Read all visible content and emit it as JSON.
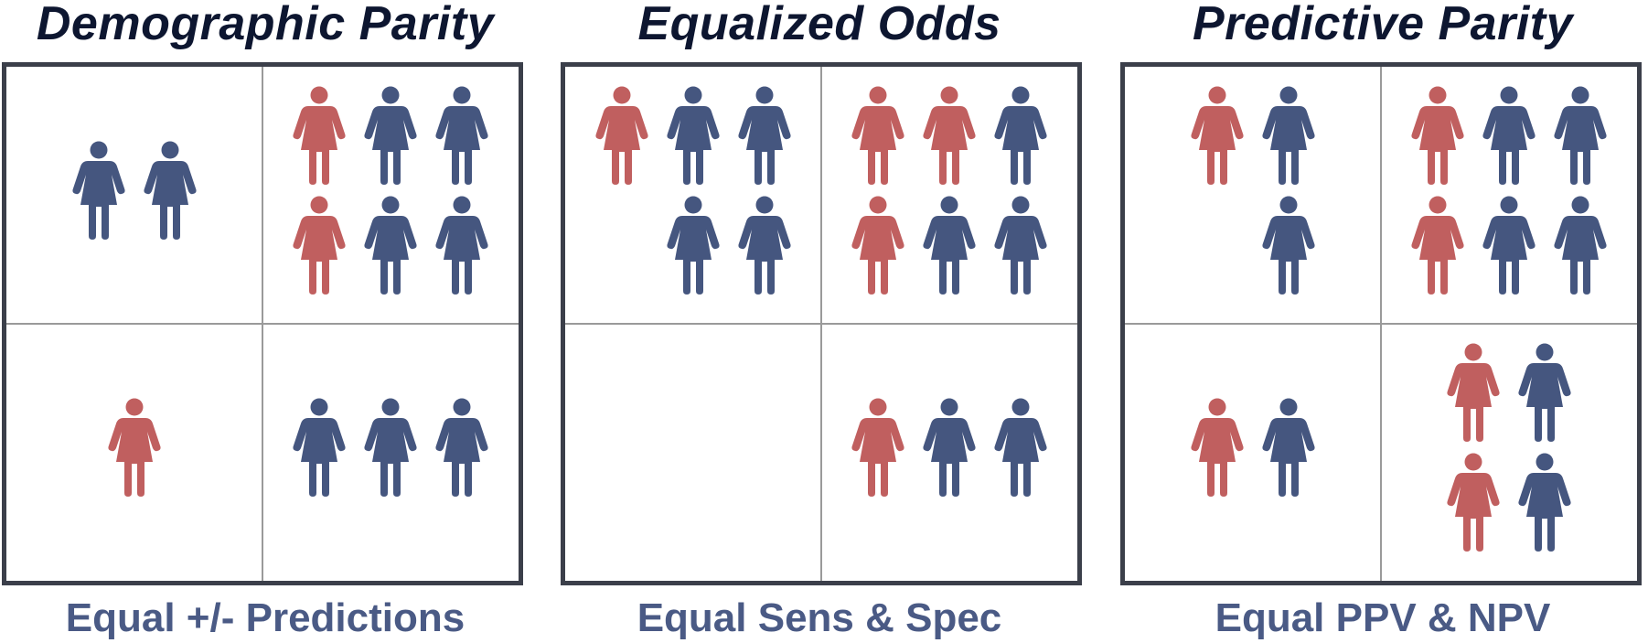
{
  "colors": {
    "red": "#c05f5f",
    "blue": "#45567f",
    "title": "#0d1630",
    "caption": "#4a5a85",
    "border": "#3b3f4a",
    "grid": "#9a9a9a"
  },
  "icon": "person-icon",
  "panels": [
    {
      "title": "Demographic Parity",
      "caption": "Equal +/- Predictions",
      "cells": {
        "tl": {
          "cols": 2,
          "people": [
            "blue",
            "blue"
          ]
        },
        "tr": {
          "cols": 3,
          "people": [
            "red",
            "blue",
            "blue",
            "red",
            "blue",
            "blue"
          ]
        },
        "bl": {
          "cols": 1,
          "people": [
            "red"
          ]
        },
        "br": {
          "cols": 3,
          "people": [
            "blue",
            "blue",
            "blue"
          ]
        }
      }
    },
    {
      "title": "Equalized Odds",
      "caption": "Equal Sens & Spec",
      "cells": {
        "tl": {
          "cols": 3,
          "people": [
            "red",
            "blue",
            "blue",
            "empty",
            "blue",
            "blue"
          ]
        },
        "tr": {
          "cols": 3,
          "people": [
            "red",
            "red",
            "blue",
            "red",
            "blue",
            "blue"
          ]
        },
        "bl": {
          "cols": 0,
          "people": []
        },
        "br": {
          "cols": 3,
          "people": [
            "red",
            "blue",
            "blue"
          ]
        }
      }
    },
    {
      "title": "Predictive Parity",
      "caption": "Equal PPV & NPV",
      "cells": {
        "tl": {
          "cols": 2,
          "people": [
            "red",
            "blue",
            "empty",
            "blue"
          ]
        },
        "tr": {
          "cols": 3,
          "people": [
            "red",
            "blue",
            "blue",
            "red",
            "blue",
            "blue"
          ]
        },
        "bl": {
          "cols": 2,
          "people": [
            "red",
            "blue"
          ]
        },
        "br": {
          "cols": 2,
          "people": [
            "red",
            "blue",
            "red",
            "blue"
          ]
        }
      }
    }
  ]
}
